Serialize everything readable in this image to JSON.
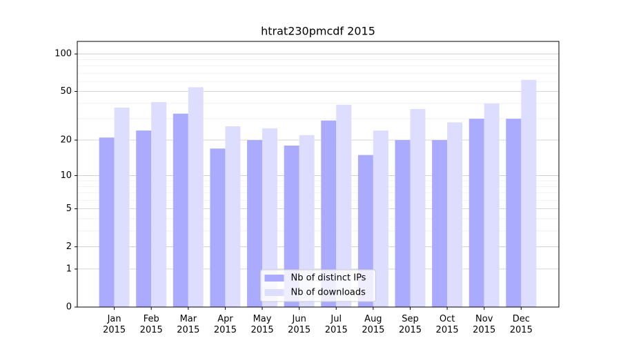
{
  "chart_data": {
    "type": "bar",
    "title": "htrat230pmcdf 2015",
    "categories": [
      "Jan\n2015",
      "Feb\n2015",
      "Mar\n2015",
      "Apr\n2015",
      "May\n2015",
      "Jun\n2015",
      "Jul\n2015",
      "Aug\n2015",
      "Sep\n2015",
      "Oct\n2015",
      "Nov\n2015",
      "Dec\n2015"
    ],
    "series": [
      {
        "name": "Nb of distinct IPs",
        "color": "#aaaaff",
        "values": [
          21,
          24,
          33,
          17,
          20,
          18,
          29,
          15,
          20,
          20,
          30,
          30
        ]
      },
      {
        "name": "Nb of downloads",
        "color": "#ddddff",
        "values": [
          37,
          41,
          54,
          26,
          25,
          22,
          39,
          24,
          36,
          28,
          40,
          62
        ]
      }
    ],
    "yscale": "log1p",
    "ylim": [
      0,
      126
    ],
    "yticks": [
      0,
      1,
      2,
      5,
      10,
      20,
      50,
      100
    ],
    "yminor": [
      3,
      4,
      6,
      7,
      8,
      9,
      30,
      40,
      60,
      70,
      80,
      90
    ],
    "grid": true,
    "legend": "lower center"
  }
}
